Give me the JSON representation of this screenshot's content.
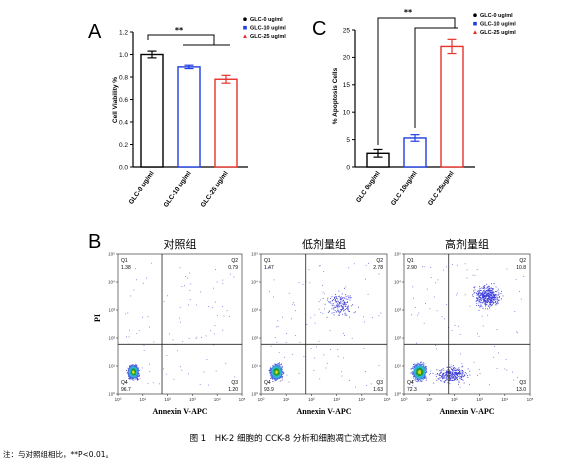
{
  "panels": {
    "A": {
      "label": "A",
      "chart_data": {
        "type": "bar",
        "ylabel": "Cell Viability %",
        "ylim": [
          0,
          1.2
        ],
        "yticks": [
          "0.0",
          "0.2",
          "0.4",
          "0.6",
          "0.8",
          "1.0",
          "1.2"
        ],
        "categories": [
          "GLC-0 ug/ml",
          "GLC-10 ug/ml",
          "GLC-25 ug/ml"
        ],
        "values": [
          1.0,
          0.89,
          0.78
        ],
        "errors": [
          0.03,
          0.015,
          0.035
        ],
        "colors": [
          "#000000",
          "#1f3fe0",
          "#e8322c"
        ],
        "legend": [
          "GLC-0 ug/ml",
          "GLC-10 ug/ml",
          "GLC-25 ug/ml"
        ],
        "significance": "**"
      }
    },
    "C": {
      "label": "C",
      "chart_data": {
        "type": "bar",
        "ylabel": "% Apoptosis Cells",
        "ylim": [
          0,
          25
        ],
        "yticks": [
          "0",
          "5",
          "10",
          "15",
          "20",
          "25"
        ],
        "categories": [
          "GLC 0ug/ml",
          "GLC 10ug/ml",
          "GLC 25ug/ml"
        ],
        "values": [
          2.5,
          5.3,
          22.0
        ],
        "errors": [
          0.7,
          0.6,
          1.3
        ],
        "colors": [
          "#000000",
          "#1f3fe0",
          "#e8322c"
        ],
        "legend": [
          "GLC-0 ug/ml",
          "GLC-10 ug/ml",
          "GLC-25 ug/ml"
        ],
        "significance": "**"
      }
    },
    "B": {
      "label": "B",
      "ylabel": "PI",
      "xlabel": "Annexin V-APC",
      "ticks": [
        "10⁰",
        "10¹",
        "10²",
        "10³",
        "10⁴",
        "10⁵"
      ],
      "plots": [
        {
          "title": "对照组",
          "q1": "Q1",
          "q1v": "1.38",
          "q2": "Q2",
          "q2v": "0.79",
          "q3": "Q3",
          "q3v": "1.20",
          "q4": "Q4",
          "q4v": "96.7"
        },
        {
          "title": "低剂量组",
          "q1": "Q1",
          "q1v": "1.47",
          "q2": "Q2",
          "q2v": "2.78",
          "q3": "Q3",
          "q3v": "1.63",
          "q4": "Q4",
          "q4v": "93.9"
        },
        {
          "title": "高剂量组",
          "q1": "Q1",
          "q1v": "2.90",
          "q2": "Q2",
          "q2v": "10.8",
          "q3": "Q3",
          "q3v": "13.0",
          "q4": "Q4",
          "q4v": "72.3"
        }
      ]
    }
  },
  "caption": "图 1　HK-2 细胞的 CCK-8 分析和细胞凋亡流式检测",
  "note": "注：与对照组相比，**P<0.01。"
}
